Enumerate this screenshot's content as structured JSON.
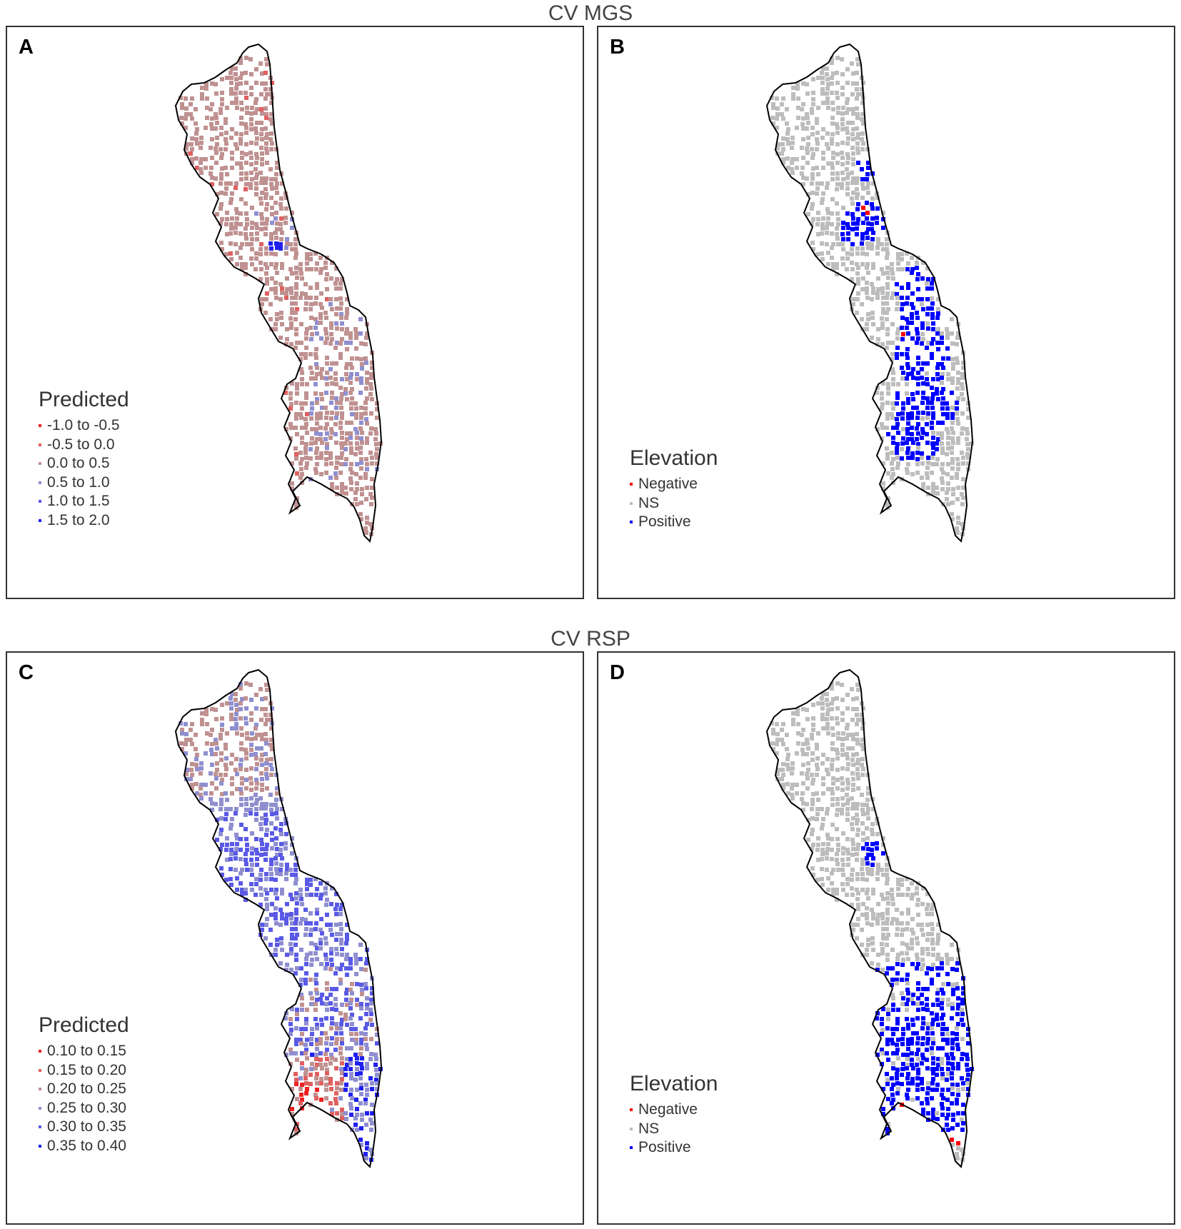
{
  "rows": [
    {
      "title": "CV MGS"
    },
    {
      "title": "CV RSP"
    }
  ],
  "panels": [
    {
      "letter": "A",
      "legend": {
        "title": "Predicted",
        "items": [
          {
            "label": "-1.0 to -0.5",
            "color": "#ee2222"
          },
          {
            "label": "-0.5 to 0.0",
            "color": "#e06060"
          },
          {
            "label": "0.0 to 0.5",
            "color": "#c09191"
          },
          {
            "label": "0.5 to 1.0",
            "color": "#8f8fd0"
          },
          {
            "label": "1.0 to 1.5",
            "color": "#5a5ae6"
          },
          {
            "label": "1.5 to 2.0",
            "color": "#2020f0"
          }
        ]
      }
    },
    {
      "letter": "B",
      "legend": {
        "title": "Elevation",
        "items": [
          {
            "label": "Negative",
            "color": "#ff0000"
          },
          {
            "label": "NS",
            "color": "#bdbdbd"
          },
          {
            "label": "Positive",
            "color": "#0000ff"
          }
        ]
      }
    },
    {
      "letter": "C",
      "legend": {
        "title": "Predicted",
        "items": [
          {
            "label": "0.10 to 0.15",
            "color": "#ee2222"
          },
          {
            "label": "0.15 to 0.20",
            "color": "#e06060"
          },
          {
            "label": "0.20 to 0.25",
            "color": "#c09191"
          },
          {
            "label": "0.25 to 0.30",
            "color": "#8f8fd0"
          },
          {
            "label": "0.30 to 0.35",
            "color": "#5a5ae6"
          },
          {
            "label": "0.35 to 0.40",
            "color": "#2020f0"
          }
        ]
      }
    },
    {
      "letter": "D",
      "legend": {
        "title": "Elevation",
        "items": [
          {
            "label": "Negative",
            "color": "#ff0000"
          },
          {
            "label": "NS",
            "color": "#bdbdbd"
          },
          {
            "label": "Positive",
            "color": "#0000ff"
          }
        ]
      }
    }
  ]
}
